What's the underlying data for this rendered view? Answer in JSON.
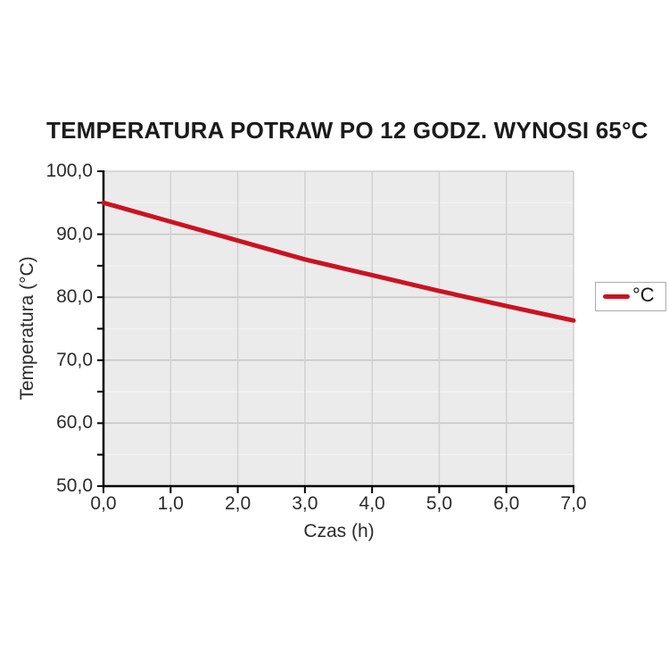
{
  "title": "TEMPERATURA POTRAW PO 12 GODZ. WYNOSI 65°C",
  "colors": {
    "line": "#cc1220",
    "plot_bg": "#ebebeb",
    "grid_major": "#c6c6c6",
    "grid_minor": "#f2f2f2",
    "grid_vertical": "#d2d2d2",
    "plot_border": "#cfcfcf",
    "axis": "#000000",
    "text": "#2b2b2b"
  },
  "chart_data": {
    "type": "line",
    "title": "TEMPERATURA POTRAW PO 12 GODZ. WYNOSI 65°C",
    "xlabel": "Czas (h)",
    "ylabel": "Temperatura (°C)",
    "xlim": [
      0,
      7
    ],
    "ylim": [
      50,
      100
    ],
    "grid": true,
    "decimal_separator": ",",
    "x": [
      0,
      1,
      2,
      3,
      4,
      5,
      6,
      7
    ],
    "series": [
      {
        "name": "°C",
        "color": "#cc1220",
        "values": [
          95.0,
          92.0,
          89.0,
          86.0,
          83.5,
          81.0,
          78.6,
          76.3
        ]
      }
    ],
    "x_tick_values": [
      0,
      1,
      2,
      3,
      4,
      5,
      6,
      7
    ],
    "x_tick_labels": [
      "0,0",
      "1,0",
      "2,0",
      "3,0",
      "4,0",
      "5,0",
      "6,0",
      "7,0"
    ],
    "y_tick_values": [
      100,
      90,
      80,
      70,
      60,
      50
    ],
    "y_tick_labels": [
      "100,0",
      "90,0",
      "80,0",
      "70,0",
      "60,0",
      "50,0"
    ],
    "y_minor_values": [
      95,
      85,
      75,
      65,
      55
    ],
    "legend": {
      "label": "°C",
      "position": "right"
    }
  }
}
